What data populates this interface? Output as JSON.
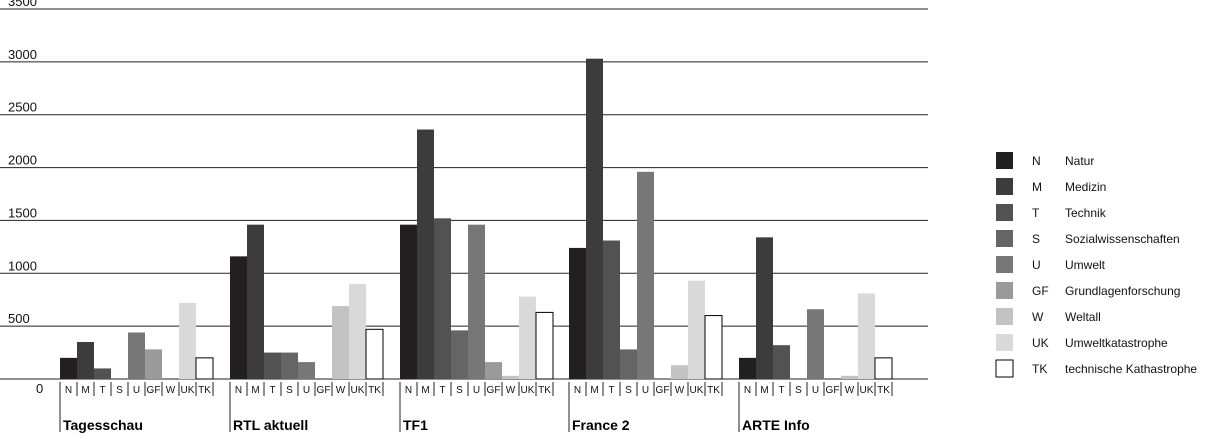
{
  "chart_data": {
    "type": "bar",
    "yticks": [
      "3500",
      "3000",
      "2500",
      "2000",
      "1500",
      "1000",
      "500",
      "0"
    ],
    "ylim": [
      0,
      3500
    ],
    "grid": true,
    "legend_position": "right",
    "categories": [
      "N",
      "M",
      "T",
      "S",
      "U",
      "GF",
      "W",
      "UK",
      "TK"
    ],
    "legend": [
      {
        "code": "N",
        "name": "Natur",
        "color": "#231f20"
      },
      {
        "code": "M",
        "name": "Medizin",
        "color": "#3c3c3c"
      },
      {
        "code": "T",
        "name": "Technik",
        "color": "#525252"
      },
      {
        "code": "S",
        "name": "Sozialwissenschaften",
        "color": "#656565"
      },
      {
        "code": "U",
        "name": "Umwelt",
        "color": "#777777"
      },
      {
        "code": "GF",
        "name": "Grundlagenforschung",
        "color": "#9a9a9a"
      },
      {
        "code": "W",
        "name": "Weltall",
        "color": "#c3c3c3"
      },
      {
        "code": "UK",
        "name": "Umweltkatastrophe",
        "color": "#d9d9d9"
      },
      {
        "code": "TK",
        "name": "technische Kathastrophe",
        "color": "#ffffff"
      }
    ],
    "groups": [
      {
        "name": "Tagesschau",
        "values": [
          200,
          350,
          100,
          0,
          440,
          280,
          0,
          720,
          200
        ]
      },
      {
        "name": "RTL aktuell",
        "values": [
          1160,
          1460,
          250,
          250,
          160,
          0,
          690,
          900,
          470
        ]
      },
      {
        "name": "TF1",
        "values": [
          1460,
          2360,
          1520,
          460,
          1460,
          160,
          30,
          780,
          630
        ]
      },
      {
        "name": "France 2",
        "values": [
          1240,
          3030,
          1310,
          280,
          1960,
          0,
          130,
          930,
          600
        ]
      },
      {
        "name": "ARTE Info",
        "values": [
          200,
          1340,
          320,
          0,
          660,
          0,
          30,
          810,
          200
        ]
      }
    ]
  }
}
